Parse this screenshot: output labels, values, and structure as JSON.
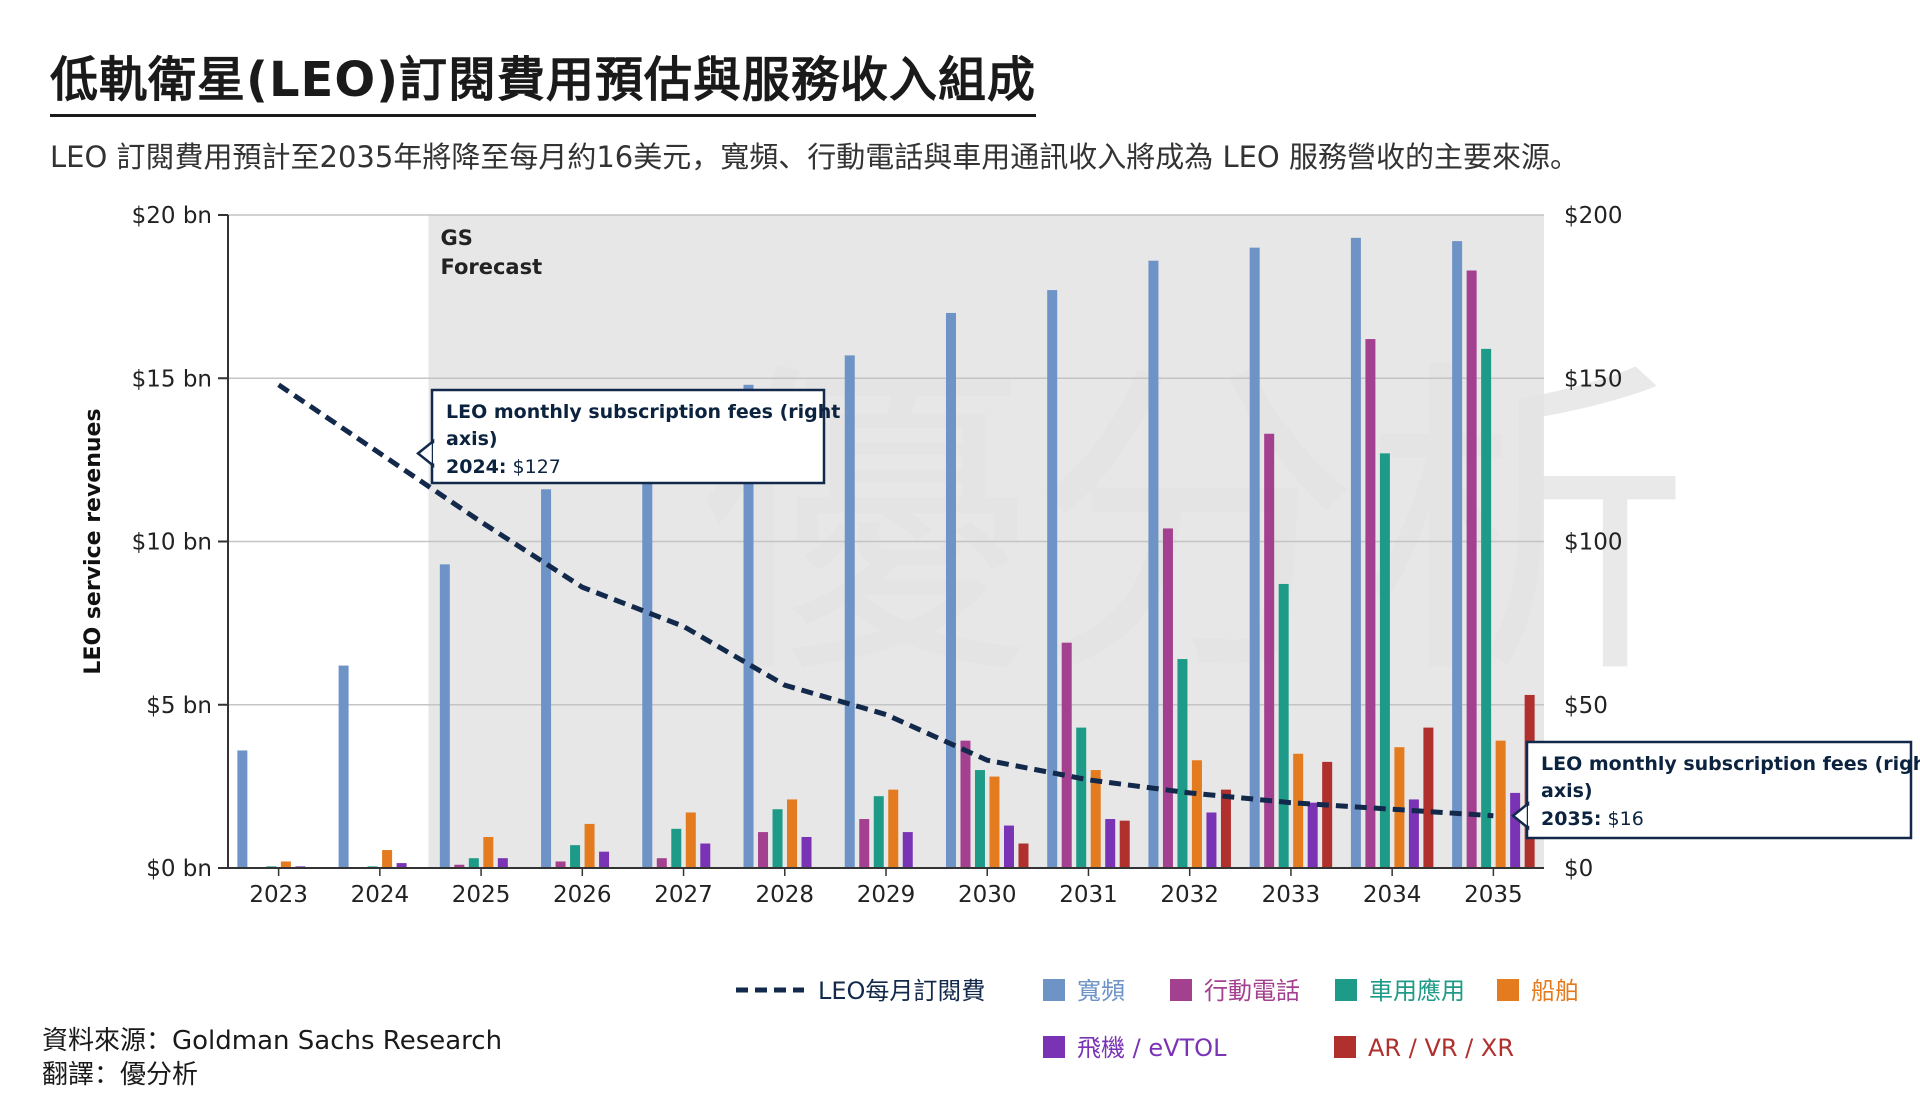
{
  "title": "低軌衛星(LEO)訂閱費用預估與服務收入組成",
  "subtitle": "LEO 訂閱費用預計至2035年將降至每月約16美元，寬頻、行動電話與車用通訊收入將成為 LEO 服務營收的主要來源。",
  "source_line": "資料來源：Goldman Sachs Research",
  "translation_line": "翻譯：優分析",
  "watermark": "優分析",
  "colors": {
    "broadband": "#6e93c6",
    "mobile": "#a3408f",
    "auto": "#1e9b88",
    "maritime": "#e47b1e",
    "aviation": "#7a33b5",
    "arvr": "#b0302e",
    "fee_line": "#13294b",
    "forecast_bg": "#e3e3e3"
  },
  "chart_data": {
    "type": "bar",
    "ylabel": "LEO service revenues",
    "forecast_label": [
      "GS",
      "Forecast"
    ],
    "ylim": [
      0,
      20
    ],
    "y_ticks": [
      "$0 bn",
      "$5 bn",
      "$10 bn",
      "$15 bn",
      "$20 bn"
    ],
    "y2lim": [
      0,
      200
    ],
    "y2_ticks": [
      "$0",
      "$50",
      "$100",
      "$150",
      "$200"
    ],
    "categories": [
      "2023",
      "2024",
      "2025",
      "2026",
      "2027",
      "2028",
      "2029",
      "2030",
      "2031",
      "2032",
      "2033",
      "2034",
      "2035"
    ],
    "series": [
      {
        "name": "寬頻",
        "key": "broadband",
        "values": [
          3.6,
          6.2,
          9.3,
          11.6,
          12.0,
          14.8,
          15.7,
          17.0,
          17.7,
          18.6,
          19.0,
          19.3,
          19.2
        ]
      },
      {
        "name": "行動電話",
        "key": "mobile",
        "values": [
          0.0,
          0.0,
          0.1,
          0.2,
          0.3,
          1.1,
          1.5,
          3.9,
          6.9,
          10.4,
          13.3,
          16.2,
          18.3
        ]
      },
      {
        "name": "車用應用",
        "key": "auto",
        "values": [
          0.05,
          0.05,
          0.3,
          0.7,
          1.2,
          1.8,
          2.2,
          3.0,
          4.3,
          6.4,
          8.7,
          12.7,
          15.9
        ]
      },
      {
        "name": "船舶",
        "key": "maritime",
        "values": [
          0.2,
          0.55,
          0.95,
          1.35,
          1.7,
          2.1,
          2.4,
          2.8,
          3.0,
          3.3,
          3.5,
          3.7,
          3.9
        ]
      },
      {
        "name": "飛機 / eVTOL",
        "key": "aviation",
        "values": [
          0.05,
          0.15,
          0.3,
          0.5,
          0.75,
          0.95,
          1.1,
          1.3,
          1.5,
          1.7,
          2.0,
          2.1,
          2.3
        ]
      },
      {
        "name": "AR / VR / XR",
        "key": "arvr",
        "values": [
          0.0,
          0.0,
          0.0,
          0.0,
          0.0,
          0.0,
          0.0,
          0.75,
          1.45,
          2.4,
          3.25,
          4.3,
          5.3
        ]
      }
    ],
    "line_series": {
      "name": "LEO每月訂閱費",
      "axis": "right",
      "values": [
        148,
        127,
        106,
        86,
        74,
        56,
        47,
        33,
        27,
        23,
        20,
        18,
        16
      ]
    },
    "annotations": [
      {
        "title": "LEO monthly subscription fees (right",
        "title2": "axis)",
        "year": "2024:",
        "value": "$127"
      },
      {
        "title": "LEO monthly subscription fees (right",
        "title2": "axis)",
        "year": "2035:",
        "value": "$16"
      }
    ]
  }
}
